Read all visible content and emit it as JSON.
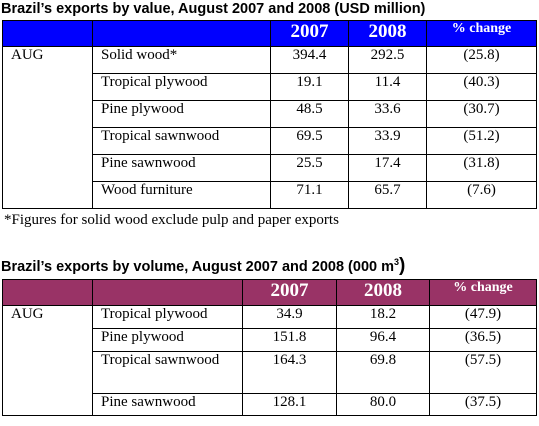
{
  "table1": {
    "title": "Brazil’s exports by value, August 2007 and 2008 (USD million)",
    "header_color": "#0000ff",
    "headers": [
      "",
      "",
      "2007",
      "2008",
      "% change"
    ],
    "month": "AUG",
    "rows": [
      {
        "product": "Solid wood*",
        "v2007": "394.4",
        "v2008": "292.5",
        "change": "(25.8)"
      },
      {
        "product": "Tropical plywood",
        "v2007": "19.1",
        "v2008": "11.4",
        "change": "(40.3)"
      },
      {
        "product": "Pine plywood",
        "v2007": "48.5",
        "v2008": "33.6",
        "change": "(30.7)"
      },
      {
        "product": "Tropical sawnwood",
        "v2007": "69.5",
        "v2008": "33.9",
        "change": "(51.2)"
      },
      {
        "product": "Pine sawnwood",
        "v2007": "25.5",
        "v2008": "17.4",
        "change": "(31.8)"
      },
      {
        "product": "Wood furniture",
        "v2007": "71.1",
        "v2008": "65.7",
        "change": "(7.6)"
      }
    ],
    "footnote": "*Figures for solid wood exclude pulp and paper exports"
  },
  "table2": {
    "title_main": "Brazil’s exports by volume, August 2007 and 2008 (000 m",
    "title_sup": "3",
    "title_close": ")",
    "header_color": "#993366",
    "headers": [
      "",
      "",
      "2007",
      "2008",
      "% change"
    ],
    "month": "AUG",
    "rows": [
      {
        "product": "Tropical plywood",
        "v2007": "34.9",
        "v2008": "18.2",
        "change": "(47.9)"
      },
      {
        "product": "Pine plywood",
        "v2007": "151.8",
        "v2008": "96.4",
        "change": "(36.5)"
      },
      {
        "product": "Tropical sawnwood",
        "v2007": "164.3",
        "v2008": "69.8",
        "change": "(57.5)"
      },
      {
        "product": "Pine sawnwood",
        "v2007": "128.1",
        "v2008": "80.0",
        "change": "(37.5)"
      }
    ]
  }
}
